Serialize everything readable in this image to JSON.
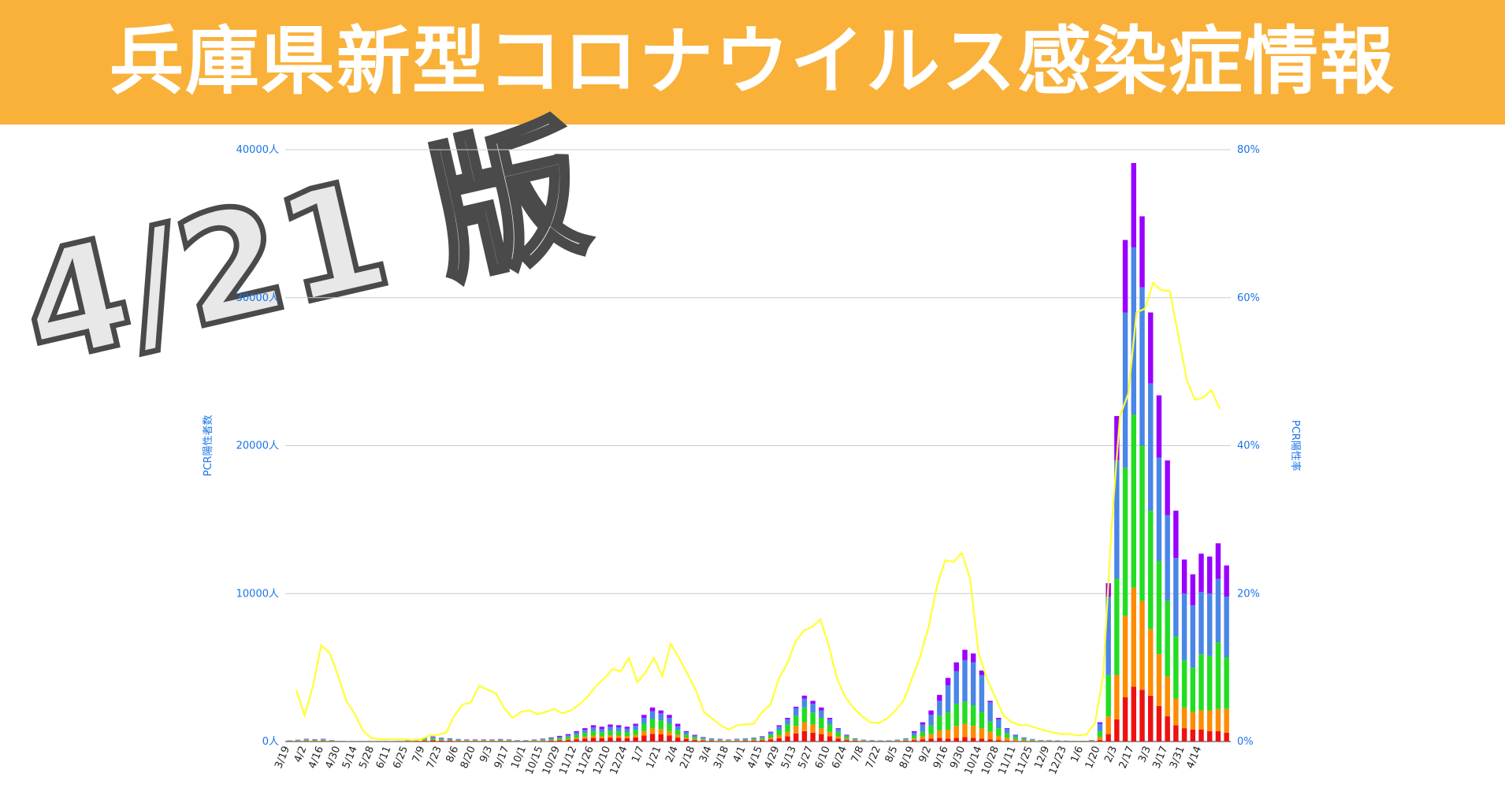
{
  "banner": {
    "title": "兵庫県新型コロナウイルス感染症情報",
    "background": "#f9b13a"
  },
  "version_label": "4/21 版",
  "chart_data": {
    "type": "bar",
    "stacked": true,
    "secondary_line": true,
    "ylabel": "PCR陽性者数",
    "y2label": "PCR陽性率",
    "ylim": [
      0,
      40000
    ],
    "y2lim": [
      0,
      80
    ],
    "yticks": [
      "0人",
      "10000人",
      "20000人",
      "30000人",
      "40000人"
    ],
    "y2ticks": [
      "0%",
      "20%",
      "40%",
      "60%",
      "80%"
    ],
    "grid": true,
    "x_labels": [
      "3/19",
      "4/2",
      "4/16",
      "4/30",
      "5/14",
      "5/28",
      "6/11",
      "6/25",
      "7/9",
      "7/23",
      "8/6",
      "8/20",
      "9/3",
      "9/17",
      "10/1",
      "10/15",
      "10/29",
      "11/12",
      "11/26",
      "12/10",
      "12/24",
      "1/7",
      "1/21",
      "2/4",
      "2/18",
      "3/4",
      "3/18",
      "4/1",
      "4/15",
      "4/29",
      "5/13",
      "5/27",
      "6/10",
      "6/24",
      "7/8",
      "7/22",
      "8/5",
      "8/19",
      "9/2",
      "9/16",
      "9/30",
      "10/14",
      "10/28",
      "11/11",
      "11/25",
      "12/9",
      "12/23",
      "1/6",
      "1/20",
      "2/3",
      "2/17",
      "3/3",
      "3/17",
      "3/31",
      "4/14"
    ],
    "x_label_stride": 2,
    "series_colors": [
      "#ee1111",
      "#ff8c00",
      "#22dd22",
      "#4a86e8",
      "#9900ff"
    ],
    "series_line_color": "#ffff33",
    "bars": [
      [
        20,
        10,
        20,
        20,
        10
      ],
      [
        30,
        20,
        40,
        20,
        10
      ],
      [
        40,
        20,
        60,
        40,
        20
      ],
      [
        30,
        20,
        50,
        30,
        20
      ],
      [
        40,
        20,
        60,
        40,
        20
      ],
      [
        20,
        10,
        30,
        20,
        10
      ],
      [
        10,
        5,
        10,
        10,
        5
      ],
      [
        5,
        3,
        5,
        5,
        2
      ],
      [
        3,
        2,
        3,
        3,
        2
      ],
      [
        3,
        2,
        3,
        3,
        2
      ],
      [
        3,
        2,
        3,
        3,
        2
      ],
      [
        3,
        2,
        3,
        3,
        2
      ],
      [
        5,
        3,
        5,
        5,
        2
      ],
      [
        10,
        5,
        10,
        10,
        5
      ],
      [
        20,
        10,
        20,
        20,
        10
      ],
      [
        40,
        20,
        50,
        40,
        20
      ],
      [
        60,
        30,
        80,
        60,
        30
      ],
      [
        80,
        40,
        100,
        80,
        40
      ],
      [
        60,
        30,
        80,
        60,
        30
      ],
      [
        50,
        30,
        60,
        50,
        30
      ],
      [
        40,
        20,
        50,
        40,
        20
      ],
      [
        30,
        20,
        40,
        30,
        20
      ],
      [
        30,
        20,
        40,
        30,
        20
      ],
      [
        30,
        20,
        40,
        30,
        20
      ],
      [
        30,
        20,
        40,
        30,
        20
      ],
      [
        40,
        20,
        50,
        40,
        20
      ],
      [
        30,
        20,
        40,
        30,
        20
      ],
      [
        20,
        10,
        30,
        20,
        10
      ],
      [
        20,
        10,
        30,
        20,
        10
      ],
      [
        30,
        20,
        40,
        30,
        20
      ],
      [
        40,
        30,
        60,
        40,
        30
      ],
      [
        60,
        40,
        80,
        60,
        40
      ],
      [
        80,
        60,
        100,
        80,
        60
      ],
      [
        100,
        80,
        150,
        100,
        70
      ],
      [
        150,
        100,
        200,
        150,
        100
      ],
      [
        200,
        130,
        250,
        200,
        120
      ],
      [
        250,
        150,
        300,
        250,
        150
      ],
      [
        220,
        130,
        280,
        220,
        150
      ],
      [
        260,
        150,
        320,
        260,
        160
      ],
      [
        250,
        150,
        300,
        250,
        150
      ],
      [
        220,
        140,
        280,
        220,
        140
      ],
      [
        280,
        160,
        350,
        280,
        130
      ],
      [
        400,
        300,
        500,
        400,
        200
      ],
      [
        520,
        380,
        620,
        520,
        260
      ],
      [
        480,
        360,
        580,
        480,
        200
      ],
      [
        400,
        300,
        500,
        400,
        200
      ],
      [
        260,
        200,
        320,
        260,
        160
      ],
      [
        160,
        110,
        200,
        160,
        70
      ],
      [
        100,
        70,
        130,
        100,
        50
      ],
      [
        70,
        50,
        80,
        70,
        30
      ],
      [
        50,
        30,
        60,
        50,
        20
      ],
      [
        40,
        30,
        50,
        40,
        20
      ],
      [
        30,
        20,
        40,
        30,
        20
      ],
      [
        40,
        30,
        50,
        40,
        20
      ],
      [
        50,
        30,
        60,
        50,
        20
      ],
      [
        60,
        40,
        80,
        60,
        20
      ],
      [
        80,
        60,
        110,
        80,
        30
      ],
      [
        140,
        120,
        200,
        150,
        50
      ],
      [
        220,
        200,
        350,
        250,
        80
      ],
      [
        350,
        300,
        500,
        350,
        100
      ],
      [
        550,
        500,
        700,
        500,
        100
      ],
      [
        700,
        600,
        1000,
        600,
        200
      ],
      [
        600,
        550,
        800,
        600,
        200
      ],
      [
        500,
        400,
        700,
        500,
        200
      ],
      [
        350,
        300,
        500,
        350,
        100
      ],
      [
        200,
        150,
        300,
        200,
        50
      ],
      [
        100,
        80,
        150,
        100,
        30
      ],
      [
        50,
        40,
        60,
        50,
        20
      ],
      [
        30,
        20,
        40,
        30,
        10
      ],
      [
        20,
        10,
        30,
        20,
        10
      ],
      [
        20,
        10,
        20,
        20,
        10
      ],
      [
        20,
        10,
        20,
        20,
        10
      ],
      [
        30,
        20,
        40,
        30,
        10
      ],
      [
        50,
        40,
        60,
        50,
        20
      ],
      [
        100,
        100,
        200,
        200,
        100
      ],
      [
        150,
        200,
        300,
        500,
        150
      ],
      [
        200,
        300,
        600,
        700,
        300
      ],
      [
        250,
        500,
        1000,
        1000,
        400
      ],
      [
        200,
        600,
        1200,
        1800,
        500
      ],
      [
        250,
        800,
        1500,
        2200,
        600
      ],
      [
        300,
        900,
        1500,
        2800,
        700
      ],
      [
        250,
        800,
        1400,
        2900,
        600
      ],
      [
        200,
        700,
        1100,
        2500,
        300
      ],
      [
        150,
        500,
        700,
        1300,
        100
      ],
      [
        100,
        300,
        500,
        600,
        100
      ],
      [
        50,
        200,
        300,
        300,
        50
      ],
      [
        30,
        100,
        150,
        150,
        30
      ],
      [
        20,
        60,
        100,
        80,
        20
      ],
      [
        20,
        40,
        60,
        40,
        10
      ],
      [
        10,
        20,
        40,
        20,
        10
      ],
      [
        10,
        20,
        30,
        20,
        10
      ],
      [
        10,
        15,
        25,
        20,
        10
      ],
      [
        10,
        10,
        20,
        10,
        10
      ],
      [
        10,
        10,
        15,
        10,
        5
      ],
      [
        10,
        10,
        15,
        10,
        5
      ],
      [
        20,
        20,
        30,
        20,
        10
      ],
      [
        100,
        200,
        400,
        500,
        100
      ],
      [
        500,
        1200,
        2800,
        5300,
        900
      ],
      [
        1500,
        3000,
        6500,
        8000,
        3000
      ],
      [
        3000,
        5500,
        10000,
        10500,
        4900
      ],
      [
        3700,
        6700,
        11700,
        11300,
        5700
      ],
      [
        3500,
        6000,
        10500,
        10700,
        4800
      ],
      [
        3100,
        4500,
        8000,
        8600,
        4800
      ],
      [
        2400,
        3500,
        6300,
        7000,
        4200
      ],
      [
        1700,
        2700,
        5100,
        5800,
        3700
      ],
      [
        1100,
        1800,
        4200,
        5300,
        3200
      ],
      [
        900,
        1400,
        3200,
        4500,
        2300
      ],
      [
        800,
        1200,
        3000,
        4200,
        2100
      ],
      [
        800,
        1300,
        3800,
        4200,
        2600
      ],
      [
        700,
        1400,
        3700,
        4200,
        2500
      ],
      [
        700,
        1500,
        4500,
        4300,
        2400
      ],
      [
        600,
        1600,
        3500,
        4100,
        2100
      ]
    ],
    "positivity_rate": [
      7,
      3.5,
      7.5,
      13,
      12,
      9,
      5.5,
      3.8,
      1.5,
      0.5,
      0.3,
      0.3,
      0.3,
      0.3,
      0.2,
      0.3,
      0.8,
      0.9,
      1.2,
      3.5,
      5,
      5.3,
      7.5,
      7,
      6.5,
      4.5,
      3.2,
      4,
      4.2,
      3.7,
      4,
      4.4,
      3.8,
      4.2,
      5,
      6,
      7.5,
      8.5,
      9.8,
      9.5,
      11.3,
      8,
      9.4,
      11.3,
      8.8,
      13.2,
      11.3,
      9.2,
      7,
      4,
      3.1,
      2.2,
      1.6,
      2.2,
      2.3,
      2.4,
      4,
      5,
      8.5,
      10.5,
      13.5,
      15,
      15.5,
      16.5,
      13,
      8.5,
      6,
      4.5,
      3.4,
      2.6,
      2.5,
      3.1,
      4.2,
      5.5,
      8.5,
      11.5,
      15.5,
      21,
      24.5,
      24.3,
      25.5,
      22,
      12,
      8.5,
      6,
      3.5,
      2.6,
      2.2,
      2.2,
      1.8,
      1.5,
      1.2,
      1,
      1,
      0.8,
      1,
      2.5,
      9,
      29,
      44,
      47,
      58,
      58.5,
      62,
      61,
      60.9,
      55,
      49,
      46.2,
      46.5,
      47.5,
      45
    ],
    "legend": "none"
  }
}
